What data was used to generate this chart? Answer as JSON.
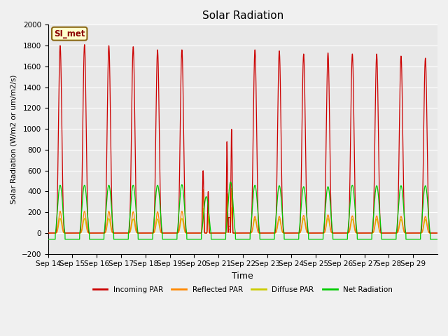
{
  "title": "Solar Radiation",
  "xlabel": "Time",
  "ylabel": "Solar Radiation (W/m2 or um/m2/s)",
  "ylim": [
    -200,
    2000
  ],
  "yticks": [
    -200,
    0,
    200,
    400,
    600,
    800,
    1000,
    1200,
    1400,
    1600,
    1800,
    2000
  ],
  "xtick_labels": [
    "Sep 14",
    "Sep 15",
    "Sep 16",
    "Sep 17",
    "Sep 18",
    "Sep 19",
    "Sep 20",
    "Sep 21",
    "Sep 22",
    "Sep 23",
    "Sep 24",
    "Sep 25",
    "Sep 26",
    "Sep 27",
    "Sep 28",
    "Sep 29"
  ],
  "num_days": 16,
  "annotation_text": "SI_met",
  "colors": {
    "incoming": "#cc0000",
    "reflected": "#ff8800",
    "diffuse": "#cccc00",
    "net": "#00cc00",
    "background": "#e8e8e8",
    "grid": "#ffffff",
    "fig_bg": "#f0f0f0"
  },
  "legend_labels": [
    "Incoming PAR",
    "Reflected PAR",
    "Diffuse PAR",
    "Net Radiation"
  ],
  "incoming_peaks": [
    1800,
    1810,
    1800,
    1790,
    1760,
    1760,
    600,
    1000,
    1760,
    1750,
    1720,
    1730,
    1720,
    1720,
    1700,
    1680
  ],
  "reflected_peaks": [
    210,
    210,
    210,
    205,
    205,
    210,
    420,
    430,
    160,
    160,
    170,
    175,
    165,
    165,
    160,
    160
  ],
  "diffuse_peaks": [
    140,
    140,
    140,
    135,
    135,
    140,
    240,
    245,
    135,
    135,
    140,
    140,
    135,
    135,
    130,
    130
  ],
  "net_peaks": [
    460,
    460,
    460,
    460,
    460,
    465,
    350,
    490,
    460,
    455,
    445,
    445,
    460,
    455,
    455,
    455
  ],
  "net_night": -60,
  "samples_per_day": 200,
  "day_sharpness": 3.5,
  "day_start": 0.3,
  "day_end": 0.7
}
